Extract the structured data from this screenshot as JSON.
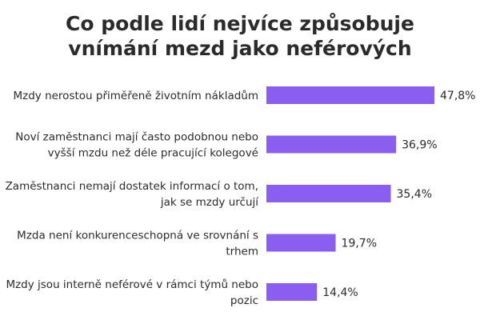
{
  "title_lines": [
    "Co podle lidí nejvíce způsobuje",
    "vnímání mezd jako neférových"
  ],
  "bar_color": "#8a5ef0",
  "chart_data": {
    "type": "bar",
    "orientation": "horizontal",
    "title": "Co podle lidí nejvíce způsobuje vnímání mezd jako neférových",
    "categories": [
      [
        "Mzdy nerostou přiměřeně životním nákladům"
      ],
      [
        "Noví zaměstnanci mají často podobnou nebo",
        "vyšší mzdu než déle pracující kolegové"
      ],
      [
        "Zaměstnanci nemají dostatek informací o tom,",
        "jak se mzdy určují"
      ],
      [
        "Mzda není konkurenceschopná ve srovnání s",
        "trhem"
      ],
      [
        "Mzdy jsou interně neférové v rámci týmů nebo",
        "pozic"
      ]
    ],
    "values": [
      47.8,
      36.9,
      35.4,
      19.7,
      14.4
    ],
    "value_labels": [
      "47,8%",
      "36,9%",
      "35,4%",
      "19,7%",
      "14,4%"
    ],
    "xlim": [
      0,
      47.8
    ],
    "grid": false,
    "legend": "none"
  }
}
